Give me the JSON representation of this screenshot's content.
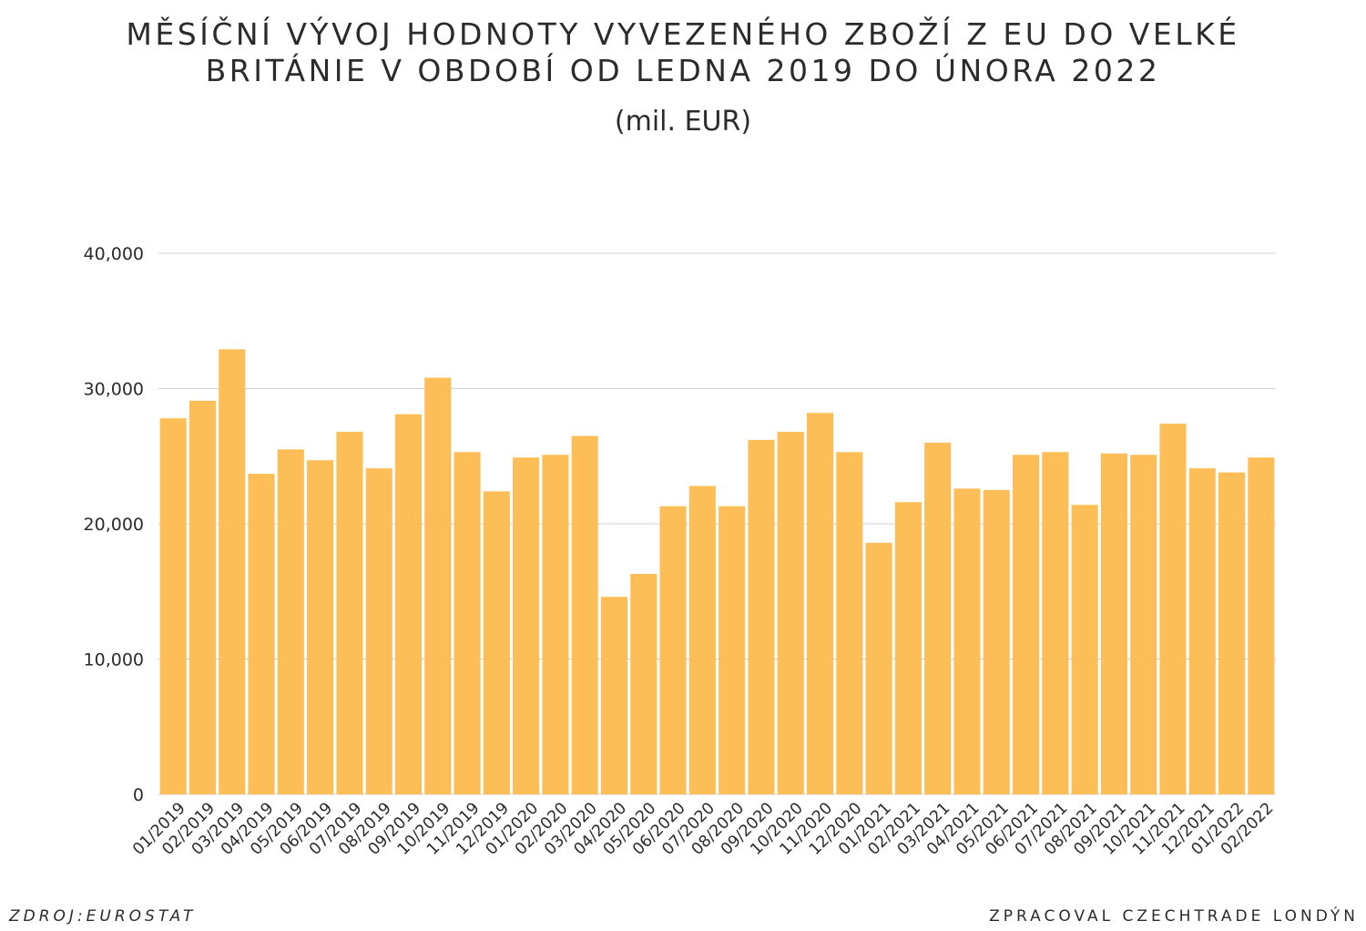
{
  "header": {
    "title_line1": "MĚSÍČNÍ VÝVOJ HODNOTY VYVEZENÉHO ZBOŽÍ Z  EU DO VELKÉ",
    "title_line2": "BRITÁNIE V OBDOBÍ OD LEDNA 2019 DO ÚNORA 2022",
    "subtitle": "(mil. EUR)"
  },
  "footer": {
    "source": "ZDROJ:EUROSTAT",
    "credit": "ZPRACOVAL CZECHTRADE LONDÝN"
  },
  "colors": {
    "bar": "#FDBE57",
    "grid": "#d0d0d0",
    "text": "#2b2b2b"
  },
  "chart_data": {
    "type": "bar",
    "ylim": [
      0,
      40000
    ],
    "yticks": [
      0,
      10000,
      20000,
      30000,
      40000
    ],
    "ytick_labels": [
      "0",
      "10,000",
      "20,000",
      "30,000",
      "40,000"
    ],
    "grid": true,
    "legend": "none",
    "categories": [
      "01/2019",
      "02/2019",
      "03/2019",
      "04/2019",
      "05/2019",
      "06/2019",
      "07/2019",
      "08/2019",
      "09/2019",
      "10/2019",
      "11/2019",
      "12/2019",
      "01/2020",
      "02/2020",
      "03/2020",
      "04/2020",
      "05/2020",
      "06/2020",
      "07/2020",
      "08/2020",
      "09/2020",
      "10/2020",
      "11/2020",
      "12/2020",
      "01/2021",
      "02/2021",
      "03/2021",
      "04/2021",
      "05/2021",
      "06/2021",
      "07/2021",
      "08/2021",
      "09/2021",
      "10/2021",
      "11/2021",
      "12/2021",
      "01/2022",
      "02/2022"
    ],
    "values": [
      27800,
      29100,
      32900,
      23700,
      25500,
      24700,
      26800,
      24100,
      28100,
      30800,
      25300,
      22400,
      24900,
      25100,
      26500,
      14600,
      16300,
      21300,
      22800,
      21300,
      26200,
      26800,
      28200,
      25300,
      18600,
      21600,
      26000,
      22600,
      22500,
      25100,
      25300,
      21400,
      25200,
      25100,
      27400,
      24100,
      23800,
      24900
    ]
  }
}
